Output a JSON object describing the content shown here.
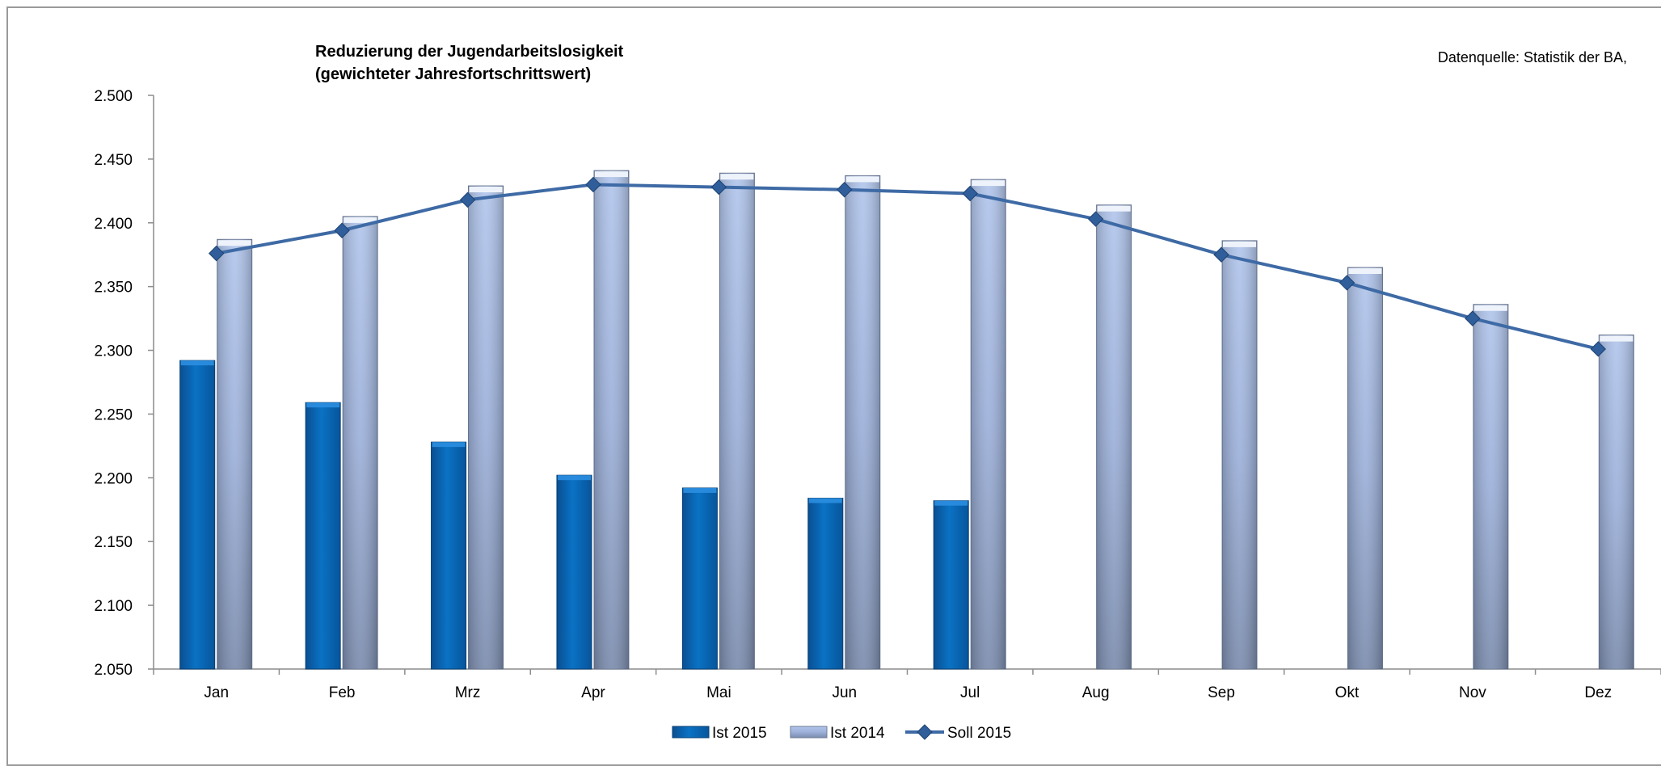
{
  "chart_data": {
    "type": "bar",
    "title": [
      "Reduzierung der Jugendarbeitslosigkeit",
      "(gewichteter Jahresfortschrittswert)"
    ],
    "source_note": "Datenquelle: Statistik der BA,",
    "categories": [
      "Jan",
      "Feb",
      "Mrz",
      "Apr",
      "Mai",
      "Jun",
      "Jul",
      "Aug",
      "Sep",
      "Okt",
      "Nov",
      "Dez"
    ],
    "ylim": [
      2050,
      2500
    ],
    "yticks": [
      2050,
      2100,
      2150,
      2200,
      2250,
      2300,
      2350,
      2400,
      2450,
      2500
    ],
    "ytick_labels": [
      "2.050",
      "2.100",
      "2.150",
      "2.200",
      "2.250",
      "2.300",
      "2.350",
      "2.400",
      "2.450",
      "2.500"
    ],
    "grid": false,
    "legend_position": "bottom",
    "series": [
      {
        "name": "Ist 2015",
        "type": "bar",
        "color": "#0a6fbf",
        "values": [
          2292,
          2259,
          2228,
          2202,
          2192,
          2184,
          2182,
          null,
          null,
          null,
          null,
          null
        ]
      },
      {
        "name": "Ist 2014",
        "type": "bar",
        "color": "#a8bde3",
        "values": [
          2387,
          2405,
          2429,
          2441,
          2439,
          2437,
          2434,
          2414,
          2386,
          2365,
          2336,
          2312
        ]
      },
      {
        "name": "Soll 2015",
        "type": "line",
        "color": "#3e6aa5",
        "values": [
          2376,
          2394,
          2418,
          2430,
          2428,
          2426,
          2423,
          2403,
          2375,
          2353,
          2325,
          2301
        ]
      }
    ]
  }
}
